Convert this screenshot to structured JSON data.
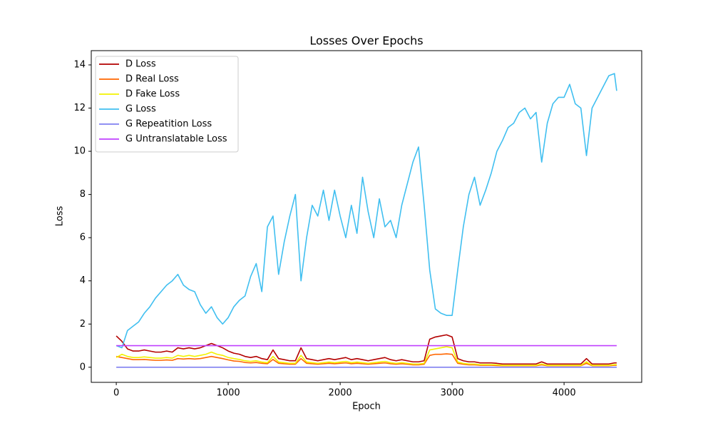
{
  "chart_data": {
    "type": "line",
    "title": "Losses Over Epochs",
    "x_label": "Epoch",
    "y_label": "Loss",
    "x": [
      0,
      50,
      100,
      150,
      200,
      250,
      300,
      350,
      400,
      450,
      500,
      550,
      600,
      650,
      700,
      750,
      800,
      850,
      900,
      950,
      1000,
      1050,
      1100,
      1150,
      1200,
      1250,
      1300,
      1350,
      1400,
      1450,
      1500,
      1550,
      1600,
      1650,
      1700,
      1750,
      1800,
      1850,
      1900,
      1950,
      2000,
      2050,
      2100,
      2150,
      2200,
      2250,
      2300,
      2350,
      2400,
      2450,
      2500,
      2550,
      2600,
      2650,
      2700,
      2750,
      2800,
      2850,
      2900,
      2950,
      3000,
      3050,
      3100,
      3150,
      3200,
      3250,
      3300,
      3350,
      3400,
      3450,
      3500,
      3550,
      3600,
      3650,
      3700,
      3750,
      3800,
      3850,
      3900,
      3950,
      4000,
      4050,
      4100,
      4150,
      4200,
      4250,
      4300,
      4350,
      4400,
      4450,
      4470
    ],
    "series": [
      {
        "name": "D Loss",
        "color": "#b30000",
        "values": [
          1.45,
          1.2,
          0.85,
          0.75,
          0.75,
          0.8,
          0.75,
          0.7,
          0.7,
          0.75,
          0.7,
          0.9,
          0.85,
          0.9,
          0.85,
          0.9,
          1.0,
          1.1,
          1.0,
          0.9,
          0.75,
          0.65,
          0.6,
          0.5,
          0.45,
          0.5,
          0.4,
          0.35,
          0.8,
          0.4,
          0.35,
          0.3,
          0.3,
          0.9,
          0.4,
          0.35,
          0.3,
          0.35,
          0.4,
          0.35,
          0.4,
          0.45,
          0.35,
          0.4,
          0.35,
          0.3,
          0.35,
          0.4,
          0.45,
          0.35,
          0.3,
          0.35,
          0.3,
          0.25,
          0.25,
          0.3,
          1.3,
          1.4,
          1.45,
          1.5,
          1.4,
          0.4,
          0.3,
          0.25,
          0.25,
          0.2,
          0.2,
          0.2,
          0.18,
          0.15,
          0.15,
          0.15,
          0.15,
          0.15,
          0.15,
          0.15,
          0.25,
          0.15,
          0.15,
          0.15,
          0.15,
          0.15,
          0.15,
          0.15,
          0.4,
          0.15,
          0.15,
          0.15,
          0.15,
          0.2,
          0.2
        ]
      },
      {
        "name": "D Real Loss",
        "color": "#ff6600",
        "values": [
          0.5,
          0.45,
          0.4,
          0.35,
          0.35,
          0.36,
          0.34,
          0.32,
          0.32,
          0.34,
          0.32,
          0.4,
          0.38,
          0.4,
          0.38,
          0.4,
          0.45,
          0.5,
          0.45,
          0.4,
          0.34,
          0.29,
          0.27,
          0.22,
          0.2,
          0.22,
          0.18,
          0.16,
          0.36,
          0.18,
          0.16,
          0.14,
          0.14,
          0.4,
          0.18,
          0.16,
          0.14,
          0.16,
          0.18,
          0.16,
          0.18,
          0.2,
          0.16,
          0.18,
          0.16,
          0.14,
          0.16,
          0.18,
          0.2,
          0.16,
          0.14,
          0.16,
          0.14,
          0.11,
          0.11,
          0.14,
          0.55,
          0.6,
          0.6,
          0.62,
          0.6,
          0.18,
          0.14,
          0.11,
          0.11,
          0.09,
          0.09,
          0.09,
          0.08,
          0.07,
          0.07,
          0.07,
          0.07,
          0.07,
          0.07,
          0.07,
          0.11,
          0.07,
          0.07,
          0.07,
          0.07,
          0.07,
          0.07,
          0.07,
          0.18,
          0.07,
          0.07,
          0.07,
          0.07,
          0.09,
          0.09
        ]
      },
      {
        "name": "D Fake Loss",
        "color": "#f2f200",
        "values": [
          0.45,
          0.6,
          0.5,
          0.45,
          0.45,
          0.48,
          0.45,
          0.42,
          0.42,
          0.45,
          0.42,
          0.55,
          0.5,
          0.55,
          0.5,
          0.55,
          0.6,
          0.7,
          0.6,
          0.55,
          0.45,
          0.4,
          0.36,
          0.3,
          0.27,
          0.3,
          0.24,
          0.21,
          0.5,
          0.24,
          0.21,
          0.18,
          0.18,
          0.55,
          0.24,
          0.21,
          0.18,
          0.21,
          0.24,
          0.21,
          0.24,
          0.27,
          0.21,
          0.24,
          0.21,
          0.18,
          0.21,
          0.24,
          0.27,
          0.21,
          0.18,
          0.21,
          0.18,
          0.15,
          0.15,
          0.18,
          0.8,
          0.85,
          0.9,
          0.95,
          0.9,
          0.24,
          0.18,
          0.15,
          0.15,
          0.12,
          0.12,
          0.12,
          0.11,
          0.09,
          0.09,
          0.09,
          0.09,
          0.09,
          0.09,
          0.09,
          0.15,
          0.09,
          0.09,
          0.09,
          0.09,
          0.09,
          0.09,
          0.09,
          0.25,
          0.09,
          0.09,
          0.09,
          0.09,
          0.12,
          0.12
        ]
      },
      {
        "name": "G Loss",
        "color": "#40bff0",
        "values": [
          1.0,
          0.9,
          1.7,
          1.9,
          2.1,
          2.5,
          2.8,
          3.2,
          3.5,
          3.8,
          4.0,
          4.3,
          3.8,
          3.6,
          3.5,
          2.9,
          2.5,
          2.8,
          2.3,
          2.0,
          2.3,
          2.8,
          3.1,
          3.3,
          4.2,
          4.8,
          3.5,
          6.5,
          7.0,
          4.3,
          5.8,
          7.0,
          8.0,
          4.0,
          6.0,
          7.5,
          7.0,
          8.2,
          6.8,
          8.2,
          7.0,
          6.0,
          7.5,
          6.2,
          8.8,
          7.2,
          6.0,
          7.8,
          6.5,
          6.8,
          6.0,
          7.5,
          8.5,
          9.5,
          10.2,
          7.5,
          4.5,
          2.7,
          2.5,
          2.4,
          2.4,
          4.5,
          6.5,
          8.0,
          8.8,
          7.5,
          8.2,
          9.0,
          10.0,
          10.5,
          11.1,
          11.3,
          11.8,
          12.0,
          11.5,
          11.8,
          9.5,
          11.3,
          12.2,
          12.5,
          12.5,
          13.1,
          12.2,
          12.0,
          9.8,
          12.0,
          12.5,
          13.0,
          13.5,
          13.6,
          12.8
        ]
      },
      {
        "name": "G Repeatition Loss",
        "color": "#8080f0",
        "values": [
          0,
          0,
          0,
          0,
          0,
          0,
          0,
          0,
          0,
          0,
          0,
          0,
          0,
          0,
          0,
          0,
          0,
          0,
          0,
          0,
          0,
          0,
          0,
          0,
          0,
          0,
          0,
          0,
          0,
          0,
          0,
          0,
          0,
          0,
          0,
          0,
          0,
          0,
          0,
          0,
          0,
          0,
          0,
          0,
          0,
          0,
          0,
          0,
          0,
          0,
          0,
          0,
          0,
          0,
          0,
          0,
          0,
          0,
          0,
          0,
          0,
          0,
          0,
          0,
          0,
          0,
          0,
          0,
          0,
          0,
          0,
          0,
          0,
          0,
          0,
          0,
          0,
          0,
          0,
          0,
          0,
          0,
          0,
          0,
          0,
          0,
          0,
          0,
          0,
          0,
          0
        ]
      },
      {
        "name": "G Untranslatable Loss",
        "color": "#c040ff",
        "values": [
          1,
          1,
          1,
          1,
          1,
          1,
          1,
          1,
          1,
          1,
          1,
          1,
          1,
          1,
          1,
          1,
          1,
          1,
          1,
          1,
          1,
          1,
          1,
          1,
          1,
          1,
          1,
          1,
          1,
          1,
          1,
          1,
          1,
          1,
          1,
          1,
          1,
          1,
          1,
          1,
          1,
          1,
          1,
          1,
          1,
          1,
          1,
          1,
          1,
          1,
          1,
          1,
          1,
          1,
          1,
          1,
          1,
          1,
          1,
          1,
          1,
          1,
          1,
          1,
          1,
          1,
          1,
          1,
          1,
          1,
          1,
          1,
          1,
          1,
          1,
          1,
          1,
          1,
          1,
          1,
          1,
          1,
          1,
          1,
          1,
          1,
          1,
          1,
          1,
          1,
          1
        ]
      }
    ],
    "xlim": [
      -223.5,
      4693.5
    ],
    "xticks": [
      0,
      1000,
      2000,
      3000,
      4000
    ],
    "ylim": [
      -0.7,
      14.66
    ],
    "yticks": [
      0,
      2,
      4,
      6,
      8,
      10,
      12,
      14
    ],
    "grid": false,
    "legend": "upper left"
  }
}
